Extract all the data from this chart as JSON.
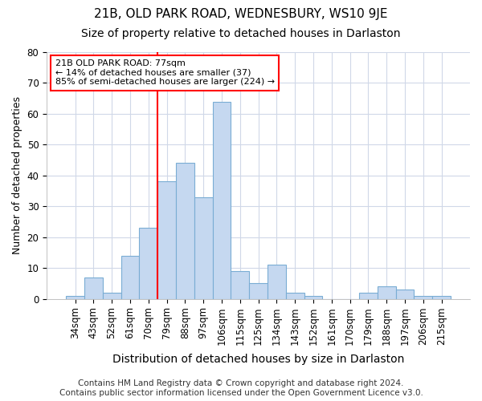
{
  "title": "21B, OLD PARK ROAD, WEDNESBURY, WS10 9JE",
  "subtitle": "Size of property relative to detached houses in Darlaston",
  "xlabel": "Distribution of detached houses by size in Darlaston",
  "ylabel": "Number of detached properties",
  "categories": [
    "34sqm",
    "43sqm",
    "52sqm",
    "61sqm",
    "70sqm",
    "79sqm",
    "88sqm",
    "97sqm",
    "106sqm",
    "115sqm",
    "125sqm",
    "134sqm",
    "143sqm",
    "152sqm",
    "161sqm",
    "170sqm",
    "179sqm",
    "188sqm",
    "197sqm",
    "206sqm",
    "215sqm"
  ],
  "values": [
    1,
    7,
    2,
    14,
    23,
    38,
    44,
    33,
    64,
    9,
    5,
    11,
    2,
    1,
    0,
    0,
    2,
    4,
    3,
    1,
    1
  ],
  "bar_color": "#c5d8f0",
  "bar_edge_color": "#7aadd4",
  "vline_x_index": 5,
  "vline_color": "red",
  "annotation_text": "21B OLD PARK ROAD: 77sqm\n← 14% of detached houses are smaller (37)\n85% of semi-detached houses are larger (224) →",
  "annotation_box_color": "white",
  "annotation_box_edge_color": "red",
  "ylim": [
    0,
    80
  ],
  "yticks": [
    0,
    10,
    20,
    30,
    40,
    50,
    60,
    70,
    80
  ],
  "footer": "Contains HM Land Registry data © Crown copyright and database right 2024.\nContains public sector information licensed under the Open Government Licence v3.0.",
  "background_color": "#ffffff",
  "plot_bg_color": "#ffffff",
  "grid_color": "#d0d8e8",
  "title_fontsize": 11,
  "subtitle_fontsize": 10,
  "xlabel_fontsize": 10,
  "ylabel_fontsize": 9,
  "tick_fontsize": 8.5,
  "footer_fontsize": 7.5
}
